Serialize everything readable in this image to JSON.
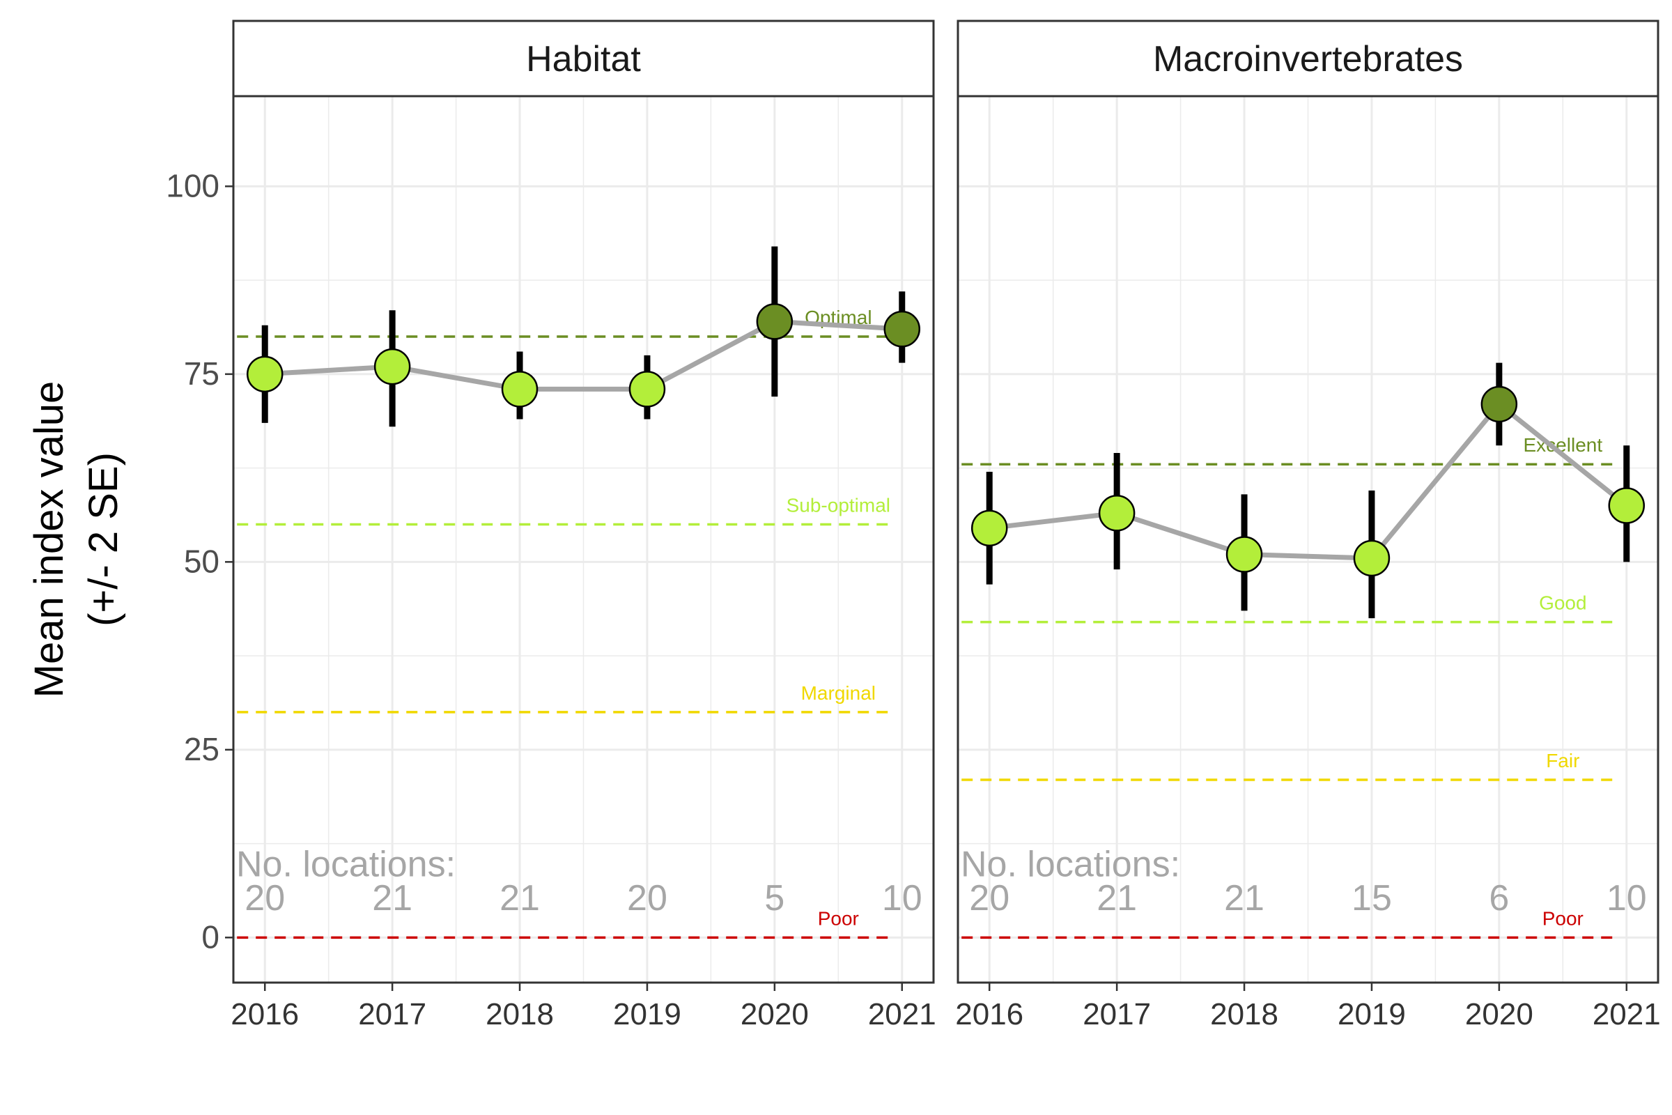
{
  "chart_data": {
    "type": "line",
    "ylabel_line1": "Mean index value",
    "ylabel_line2": "(+/- 2 SE)",
    "ylim": [
      -6,
      112
    ],
    "yticks": [
      0,
      25,
      50,
      75,
      100
    ],
    "x": [
      "2016",
      "2017",
      "2018",
      "2019",
      "2020",
      "2021"
    ],
    "grid": true,
    "annotation_label": "No. locations:",
    "colors": {
      "line": "#a6a6a6",
      "point_light": "#b3ee3a",
      "point_dark": "#6b8e23",
      "errorbar": "#000000",
      "count_text": "#a6a6a6",
      "grid": "#ebebeb"
    },
    "panels": [
      {
        "title": "Habitat",
        "series": [
          {
            "y": [
              75,
              76,
              73,
              73,
              82,
              81
            ],
            "lower": [
              68.5,
              68,
              69,
              69,
              72,
              76.5
            ],
            "upper": [
              81.5,
              83.5,
              78,
              77.5,
              92,
              86
            ],
            "point_color": [
              "light",
              "light",
              "light",
              "light",
              "dark",
              "dark"
            ]
          }
        ],
        "locations": [
          20,
          21,
          21,
          20,
          5,
          10
        ],
        "thresholds": [
          {
            "label": "Optimal",
            "value": 80,
            "color": "#6b8e23"
          },
          {
            "label": "Sub-optimal",
            "value": 55,
            "color": "#b3ee3a"
          },
          {
            "label": "Marginal",
            "value": 30,
            "color": "#f0d800"
          },
          {
            "label": "Poor",
            "value": 0,
            "color": "#cc0000"
          }
        ]
      },
      {
        "title": "Macroinvertebrates",
        "series": [
          {
            "y": [
              54.5,
              56.5,
              51,
              50.5,
              71,
              57.5
            ],
            "lower": [
              47,
              49,
              43.5,
              42.5,
              65.5,
              50
            ],
            "upper": [
              62,
              64.5,
              59,
              59.5,
              76.5,
              65.5
            ],
            "point_color": [
              "light",
              "light",
              "light",
              "light",
              "dark",
              "light"
            ]
          }
        ],
        "locations": [
          20,
          21,
          21,
          15,
          6,
          10
        ],
        "thresholds": [
          {
            "label": "Excellent",
            "value": 63,
            "color": "#6b8e23"
          },
          {
            "label": "Good",
            "value": 42,
            "color": "#b3ee3a"
          },
          {
            "label": "Fair",
            "value": 21,
            "color": "#f0d800"
          },
          {
            "label": "Poor",
            "value": 0,
            "color": "#cc0000"
          }
        ]
      }
    ]
  }
}
